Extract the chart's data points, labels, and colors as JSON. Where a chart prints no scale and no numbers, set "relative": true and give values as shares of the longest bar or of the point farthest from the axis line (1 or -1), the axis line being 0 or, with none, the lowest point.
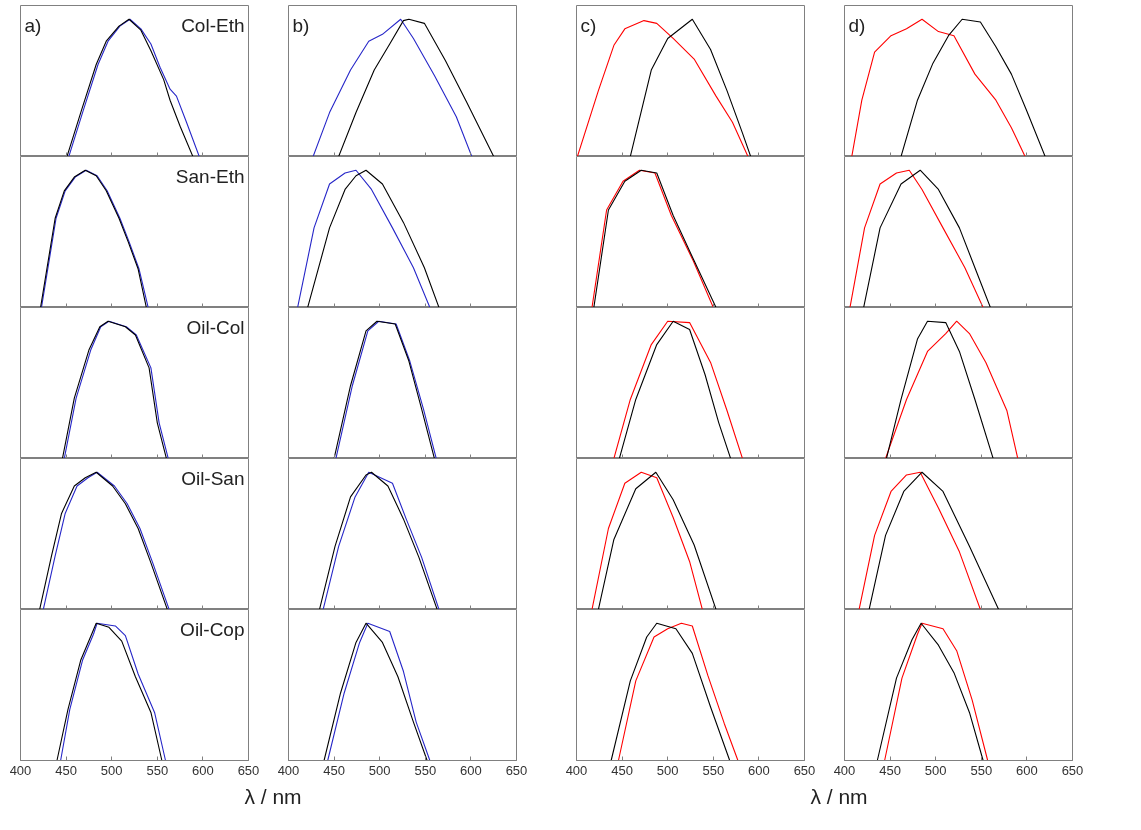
{
  "chart_data": [
    {
      "type": "line",
      "relative": true,
      "xlim": [
        400,
        650
      ],
      "xticks": [
        400,
        450,
        500,
        550,
        600,
        650
      ],
      "tick_labels": false,
      "title": "a)",
      "annotations": [
        "Col-Eth"
      ],
      "series": [
        {
          "color": "#2626c8",
          "x": [
            453,
            469,
            485,
            496,
            509,
            520,
            532,
            543,
            553,
            564,
            571,
            582,
            596
          ],
          "values": [
            0,
            0.34,
            0.67,
            0.84,
            0.95,
            1,
            0.93,
            0.82,
            0.65,
            0.49,
            0.44,
            0.25,
            0
          ]
        },
        {
          "color": "#000000",
          "x": [
            451,
            467,
            483,
            494,
            508,
            519,
            532,
            543,
            557,
            564,
            575,
            589
          ],
          "values": [
            0,
            0.34,
            0.67,
            0.84,
            0.95,
            1,
            0.92,
            0.77,
            0.56,
            0.41,
            0.22,
            0
          ]
        }
      ]
    },
    {
      "type": "line",
      "relative": true,
      "xlim": [
        400,
        650
      ],
      "xticks": [
        400,
        450,
        500,
        550,
        600,
        650
      ],
      "tick_labels": false,
      "title": "b)",
      "series": [
        {
          "color": "#2626c8",
          "x": [
            427,
            445,
            468,
            488,
            503,
            523,
            537,
            560,
            584,
            601
          ],
          "values": [
            0,
            0.32,
            0.63,
            0.84,
            0.89,
            1,
            0.86,
            0.59,
            0.29,
            0
          ]
        },
        {
          "color": "#000000",
          "x": [
            455,
            474,
            494,
            511,
            526,
            532,
            549,
            572,
            595,
            625
          ],
          "values": [
            0,
            0.32,
            0.63,
            0.82,
            0.99,
            1,
            0.97,
            0.7,
            0.4,
            0
          ]
        }
      ]
    },
    {
      "type": "line",
      "relative": true,
      "xlim": [
        400,
        650
      ],
      "xticks": [
        400,
        450,
        500,
        550,
        600,
        650
      ],
      "tick_labels": false,
      "title": "c)",
      "series": [
        {
          "color": "#ff0000",
          "x": [
            401,
            424,
            441,
            453,
            474,
            488,
            506,
            529,
            553,
            571,
            588
          ],
          "values": [
            0,
            0.48,
            0.81,
            0.93,
            0.99,
            0.97,
            0.86,
            0.71,
            0.44,
            0.25,
            0
          ]
        },
        {
          "color": "#000000",
          "x": [
            459,
            482,
            500,
            527,
            547,
            565,
            582,
            591
          ],
          "values": [
            0,
            0.63,
            0.86,
            1,
            0.78,
            0.48,
            0.17,
            0
          ]
        }
      ]
    },
    {
      "type": "line",
      "relative": true,
      "xlim": [
        400,
        650
      ],
      "xticks": [
        400,
        450,
        500,
        550,
        600,
        650
      ],
      "tick_labels": false,
      "title": "d)",
      "series": [
        {
          "color": "#ff0000",
          "x": [
            408,
            419,
            433,
            451,
            468,
            485,
            503,
            520,
            543,
            566,
            583,
            598
          ],
          "values": [
            0,
            0.41,
            0.76,
            0.88,
            0.93,
            1,
            0.91,
            0.88,
            0.6,
            0.41,
            0.21,
            0
          ]
        },
        {
          "color": "#000000",
          "x": [
            462,
            480,
            497,
            514,
            529,
            549,
            566,
            583,
            600,
            620
          ],
          "values": [
            0,
            0.41,
            0.68,
            0.88,
            1,
            0.98,
            0.8,
            0.6,
            0.33,
            0
          ]
        }
      ]
    },
    {
      "type": "line",
      "relative": true,
      "xlim": [
        400,
        650
      ],
      "xticks": [
        400,
        450,
        500,
        550,
        600,
        650
      ],
      "tick_labels": false,
      "annotations": [
        "San-Eth"
      ],
      "series": [
        {
          "color": "#2626c8",
          "x": [
            423,
            439,
            449,
            460,
            472,
            484,
            495,
            509,
            519,
            530,
            540
          ],
          "values": [
            0,
            0.65,
            0.85,
            0.95,
            1,
            0.96,
            0.85,
            0.65,
            0.48,
            0.28,
            0
          ]
        },
        {
          "color": "#000000",
          "x": [
            422,
            438,
            448,
            459,
            471,
            483,
            494,
            508,
            518,
            529,
            538
          ],
          "values": [
            0,
            0.65,
            0.85,
            0.95,
            1,
            0.96,
            0.85,
            0.65,
            0.48,
            0.28,
            0
          ]
        }
      ]
    },
    {
      "type": "line",
      "relative": true,
      "xlim": [
        400,
        650
      ],
      "xticks": [
        400,
        450,
        500,
        550,
        600,
        650
      ],
      "tick_labels": false,
      "series": [
        {
          "color": "#2626c8",
          "x": [
            410,
            428,
            445,
            462,
            474,
            491,
            514,
            537,
            555
          ],
          "values": [
            0,
            0.58,
            0.9,
            0.98,
            1,
            0.86,
            0.58,
            0.29,
            0
          ]
        },
        {
          "color": "#000000",
          "x": [
            421,
            445,
            462,
            474,
            485,
            503,
            526,
            549,
            565
          ],
          "values": [
            0,
            0.58,
            0.86,
            0.96,
            1,
            0.9,
            0.62,
            0.29,
            0
          ]
        }
      ]
    },
    {
      "type": "line",
      "relative": true,
      "xlim": [
        400,
        650
      ],
      "xticks": [
        400,
        450,
        500,
        550,
        600,
        650
      ],
      "tick_labels": false,
      "series": [
        {
          "color": "#ff0000",
          "x": [
            417,
            433,
            451,
            469,
            486,
            504,
            528,
            550
          ],
          "values": [
            0,
            0.71,
            0.92,
            1,
            0.98,
            0.67,
            0.34,
            0
          ]
        },
        {
          "color": "#000000",
          "x": [
            419,
            435,
            453,
            471,
            488,
            506,
            529,
            553
          ],
          "values": [
            0,
            0.71,
            0.92,
            1,
            0.98,
            0.67,
            0.34,
            0
          ]
        }
      ]
    },
    {
      "type": "line",
      "relative": true,
      "xlim": [
        400,
        650
      ],
      "xticks": [
        400,
        450,
        500,
        550,
        600,
        650
      ],
      "tick_labels": false,
      "series": [
        {
          "color": "#ff0000",
          "x": [
            406,
            422,
            439,
            457,
            471,
            485,
            508,
            532,
            552
          ],
          "values": [
            0,
            0.58,
            0.9,
            0.98,
            1,
            0.86,
            0.58,
            0.29,
            0
          ]
        },
        {
          "color": "#000000",
          "x": [
            421,
            439,
            462,
            483,
            503,
            526,
            543,
            560
          ],
          "values": [
            0,
            0.58,
            0.9,
            1,
            0.86,
            0.58,
            0.29,
            0
          ]
        }
      ]
    },
    {
      "type": "line",
      "relative": true,
      "xlim": [
        400,
        650
      ],
      "xticks": [
        400,
        450,
        500,
        550,
        600,
        650
      ],
      "tick_labels": false,
      "annotations": [
        "Oil-Col"
      ],
      "series": [
        {
          "color": "#2626c8",
          "x": [
            448,
            461,
            477,
            488,
            497,
            516,
            527,
            543,
            552,
            562
          ],
          "values": [
            0,
            0.44,
            0.79,
            0.96,
            1,
            0.96,
            0.9,
            0.66,
            0.26,
            0
          ]
        },
        {
          "color": "#000000",
          "x": [
            446,
            459,
            475,
            487,
            496,
            515,
            526,
            541,
            550,
            560
          ],
          "values": [
            0,
            0.44,
            0.79,
            0.96,
            1,
            0.96,
            0.9,
            0.66,
            0.26,
            0
          ]
        }
      ]
    },
    {
      "type": "line",
      "relative": true,
      "xlim": [
        400,
        650
      ],
      "xticks": [
        400,
        450,
        500,
        550,
        600,
        650
      ],
      "tick_labels": false,
      "series": [
        {
          "color": "#2626c8",
          "x": [
            452,
            470,
            487,
            499,
            518,
            533,
            548,
            562
          ],
          "values": [
            0,
            0.53,
            0.93,
            1,
            0.98,
            0.71,
            0.36,
            0
          ]
        },
        {
          "color": "#000000",
          "x": [
            450,
            468,
            485,
            497,
            517,
            532,
            546,
            560
          ],
          "values": [
            0,
            0.53,
            0.93,
            1,
            0.98,
            0.71,
            0.36,
            0
          ]
        }
      ]
    },
    {
      "type": "line",
      "relative": true,
      "xlim": [
        400,
        650
      ],
      "xticks": [
        400,
        450,
        500,
        550,
        600,
        650
      ],
      "tick_labels": false,
      "series": [
        {
          "color": "#ff0000",
          "x": [
            441,
            459,
            482,
            500,
            524,
            547,
            565,
            582
          ],
          "values": [
            0,
            0.43,
            0.83,
            1,
            0.99,
            0.7,
            0.35,
            0
          ]
        },
        {
          "color": "#000000",
          "x": [
            447,
            465,
            488,
            506,
            524,
            541,
            556,
            569
          ],
          "values": [
            0,
            0.43,
            0.83,
            1,
            0.94,
            0.61,
            0.26,
            0
          ]
        }
      ]
    },
    {
      "type": "line",
      "relative": true,
      "xlim": [
        400,
        650
      ],
      "xticks": [
        400,
        450,
        500,
        550,
        600,
        650
      ],
      "tick_labels": false,
      "series": [
        {
          "color": "#ff0000",
          "x": [
            445,
            468,
            491,
            511,
            523,
            537,
            555,
            578,
            590
          ],
          "values": [
            0,
            0.43,
            0.78,
            0.91,
            1,
            0.91,
            0.7,
            0.35,
            0
          ]
        },
        {
          "color": "#000000",
          "x": [
            446,
            462,
            480,
            491,
            511,
            526,
            543,
            563
          ],
          "values": [
            0,
            0.43,
            0.87,
            1,
            0.99,
            0.78,
            0.43,
            0
          ]
        }
      ]
    },
    {
      "type": "line",
      "relative": true,
      "xlim": [
        400,
        650
      ],
      "xticks": [
        400,
        450,
        500,
        550,
        600,
        650
      ],
      "tick_labels": false,
      "annotations": [
        "Oil-San"
      ],
      "series": [
        {
          "color": "#2626c8",
          "x": [
            425,
            438,
            449,
            462,
            474,
            484,
            503,
            517,
            531,
            545,
            563
          ],
          "values": [
            0,
            0.39,
            0.7,
            0.9,
            0.96,
            1,
            0.9,
            0.77,
            0.59,
            0.34,
            0
          ]
        },
        {
          "color": "#000000",
          "x": [
            421,
            434,
            445,
            459,
            471,
            483,
            501,
            515,
            529,
            543,
            561
          ],
          "values": [
            0,
            0.39,
            0.7,
            0.9,
            0.96,
            1,
            0.9,
            0.77,
            0.59,
            0.34,
            0
          ]
        }
      ]
    },
    {
      "type": "line",
      "relative": true,
      "xlim": [
        400,
        650
      ],
      "xticks": [
        400,
        450,
        500,
        550,
        600,
        650
      ],
      "tick_labels": false,
      "series": [
        {
          "color": "#2626c8",
          "x": [
            438,
            455,
            473,
            488,
            514,
            529,
            546,
            565
          ],
          "values": [
            0,
            0.46,
            0.82,
            1,
            0.92,
            0.66,
            0.38,
            0
          ]
        },
        {
          "color": "#000000",
          "x": [
            434,
            451,
            468,
            485,
            491,
            509,
            526,
            543,
            563
          ],
          "values": [
            0,
            0.46,
            0.82,
            0.98,
            1,
            0.9,
            0.66,
            0.38,
            0
          ]
        }
      ]
    },
    {
      "type": "line",
      "relative": true,
      "xlim": [
        400,
        650
      ],
      "xticks": [
        400,
        450,
        500,
        550,
        600,
        650
      ],
      "tick_labels": false,
      "series": [
        {
          "color": "#ff0000",
          "x": [
            417,
            435,
            453,
            471,
            488,
            506,
            524,
            538
          ],
          "values": [
            0,
            0.59,
            0.92,
            1,
            0.96,
            0.67,
            0.35,
            0
          ]
        },
        {
          "color": "#000000",
          "x": [
            424,
            441,
            465,
            487,
            506,
            529,
            553
          ],
          "values": [
            0,
            0.51,
            0.88,
            1,
            0.8,
            0.47,
            0
          ]
        }
      ]
    },
    {
      "type": "line",
      "relative": true,
      "xlim": [
        400,
        650
      ],
      "xticks": [
        400,
        450,
        500,
        550,
        600,
        650
      ],
      "tick_labels": false,
      "series": [
        {
          "color": "#ff0000",
          "x": [
            416,
            433,
            451,
            468,
            483,
            503,
            526,
            549
          ],
          "values": [
            0,
            0.54,
            0.86,
            0.98,
            1,
            0.74,
            0.42,
            0
          ]
        },
        {
          "color": "#000000",
          "x": [
            427,
            445,
            465,
            485,
            508,
            537,
            569
          ],
          "values": [
            0,
            0.54,
            0.86,
            1,
            0.86,
            0.46,
            0
          ]
        }
      ]
    },
    {
      "type": "line",
      "relative": true,
      "xlim": [
        400,
        650
      ],
      "xticks": [
        400,
        450,
        500,
        550,
        600,
        650
      ],
      "tick_labels": "x",
      "xlabel": "λ / nm",
      "annotations": [
        "Oil-Cop"
      ],
      "series": [
        {
          "color": "#2626c8",
          "x": [
            444,
            454,
            468,
            480,
            484,
            504,
            515,
            529,
            547,
            559
          ],
          "values": [
            0,
            0.37,
            0.73,
            0.92,
            1,
            0.98,
            0.91,
            0.63,
            0.35,
            0
          ]
        },
        {
          "color": "#000000",
          "x": [
            440,
            452,
            466,
            478,
            483,
            497,
            511,
            526,
            543,
            555
          ],
          "values": [
            0,
            0.37,
            0.73,
            0.92,
            1,
            0.97,
            0.87,
            0.61,
            0.35,
            0
          ]
        }
      ]
    },
    {
      "type": "line",
      "relative": true,
      "xlim": [
        400,
        650
      ],
      "xticks": [
        400,
        450,
        500,
        550,
        600,
        650
      ],
      "tick_labels": "x",
      "series": [
        {
          "color": "#2626c8",
          "x": [
            443,
            461,
            478,
            487,
            511,
            526,
            540,
            555
          ],
          "values": [
            0,
            0.49,
            0.86,
            1,
            0.94,
            0.65,
            0.28,
            0
          ]
        },
        {
          "color": "#000000",
          "x": [
            439,
            457,
            474,
            485,
            503,
            520,
            537,
            552
          ],
          "values": [
            0,
            0.49,
            0.86,
            1,
            0.86,
            0.61,
            0.28,
            0
          ]
        }
      ]
    },
    {
      "type": "line",
      "relative": true,
      "xlim": [
        400,
        650
      ],
      "xticks": [
        400,
        450,
        500,
        550,
        600,
        650
      ],
      "tick_labels": "x",
      "xlabel": "λ / nm",
      "series": [
        {
          "color": "#ff0000",
          "x": [
            446,
            465,
            485,
            500,
            515,
            527,
            544,
            562,
            577
          ],
          "values": [
            0,
            0.58,
            0.9,
            0.96,
            1,
            0.98,
            0.62,
            0.27,
            0
          ]
        },
        {
          "color": "#000000",
          "x": [
            438,
            459,
            477,
            488,
            509,
            527,
            547,
            568
          ],
          "values": [
            0,
            0.58,
            0.9,
            1,
            0.96,
            0.78,
            0.39,
            0
          ]
        }
      ]
    },
    {
      "type": "line",
      "relative": true,
      "xlim": [
        400,
        650
      ],
      "xticks": [
        400,
        450,
        500,
        550,
        600,
        650
      ],
      "tick_labels": "x",
      "series": [
        {
          "color": "#ff0000",
          "x": [
            444,
            463,
            480,
            485,
            508,
            523,
            540,
            557
          ],
          "values": [
            0,
            0.6,
            0.92,
            1,
            0.96,
            0.8,
            0.44,
            0
          ]
        },
        {
          "color": "#000000",
          "x": [
            436,
            457,
            474,
            484,
            503,
            520,
            537,
            552
          ],
          "values": [
            0,
            0.6,
            0.88,
            1,
            0.84,
            0.64,
            0.35,
            0
          ]
        }
      ]
    }
  ]
}
